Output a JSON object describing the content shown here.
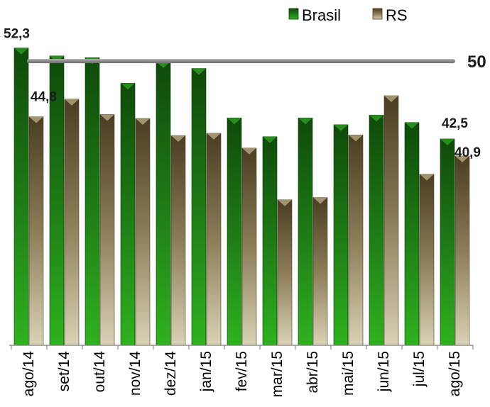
{
  "chart_data": {
    "type": "bar",
    "categories": [
      "ago/14",
      "set/14",
      "out/14",
      "nov/14",
      "dez/14",
      "jan/15",
      "fev/15",
      "mar/15",
      "abr/15",
      "mai/15",
      "jun/15",
      "jul/15",
      "ago/15"
    ],
    "series": [
      {
        "name": "Brasil",
        "color": "#1e7a14",
        "values": [
          52.3,
          50.9,
          50.6,
          46.1,
          49.9,
          48.7,
          40.0,
          36.7,
          40.0,
          38.8,
          40.5,
          39.2,
          36.3
        ]
      },
      {
        "name": "RS",
        "color": "#8a7d5a",
        "values": [
          40.2,
          43.3,
          40.6,
          39.9,
          36.9,
          37.3,
          34.7,
          25.6,
          26.0,
          37.0,
          43.9,
          30.1,
          33.3
        ]
      }
    ],
    "reference_line": {
      "value": 50,
      "label": "50",
      "color": "#8c8c8c"
    },
    "data_labels": [
      {
        "text": "52,3"
      },
      {
        "text": "44,8"
      },
      {
        "text": "42,5"
      },
      {
        "text": "40,9"
      }
    ],
    "ylim": [
      0,
      55
    ],
    "grid": false,
    "legend_position": "top-right"
  }
}
